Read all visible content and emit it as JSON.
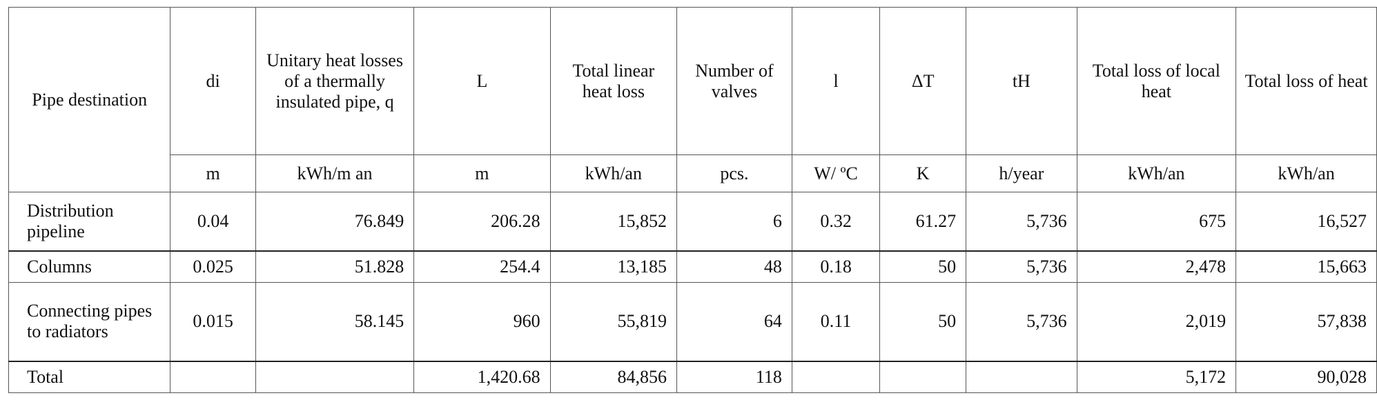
{
  "table": {
    "headers": [
      "Pipe destination",
      "di",
      "Unitary heat losses of a thermally insulated pipe, q",
      "L",
      "Total linear heat loss",
      "Number of valves",
      "l",
      "ΔT",
      "tH",
      "Total loss of local heat",
      "Total loss of heat"
    ],
    "units": [
      "m",
      "kWh/m an",
      "m",
      "kWh/an",
      "pcs.",
      "W/ ºC",
      "K",
      "h/year",
      "kWh/an",
      "kWh/an"
    ],
    "rows": [
      {
        "name": "Distribution pipeline",
        "di": "0.04",
        "q": "76.849",
        "L": "206.28",
        "linear_loss": "15,852",
        "valves": "6",
        "l": "0.32",
        "dT": "61.27",
        "tH": "5,736",
        "local_loss": "675",
        "total_loss": "16,527"
      },
      {
        "name": "Columns",
        "di": "0.025",
        "q": "51.828",
        "L": "254.4",
        "linear_loss": "13,185",
        "valves": "48",
        "l": "0.18",
        "dT": "50",
        "tH": "5,736",
        "local_loss": "2,478",
        "total_loss": "15,663"
      },
      {
        "name": "Connecting pipes to radiators",
        "di": "0.015",
        "q": "58.145",
        "L": "960",
        "linear_loss": "55,819",
        "valves": "64",
        "l": "0.11",
        "dT": "50",
        "tH": "5,736",
        "local_loss": "2,019",
        "total_loss": "57,838"
      },
      {
        "name": "Total",
        "di": "",
        "q": "",
        "L": "1,420.68",
        "linear_loss": "84,856",
        "valves": "118",
        "l": "",
        "dT": "",
        "tH": "",
        "local_loss": "5,172",
        "total_loss": "90,028"
      }
    ]
  }
}
